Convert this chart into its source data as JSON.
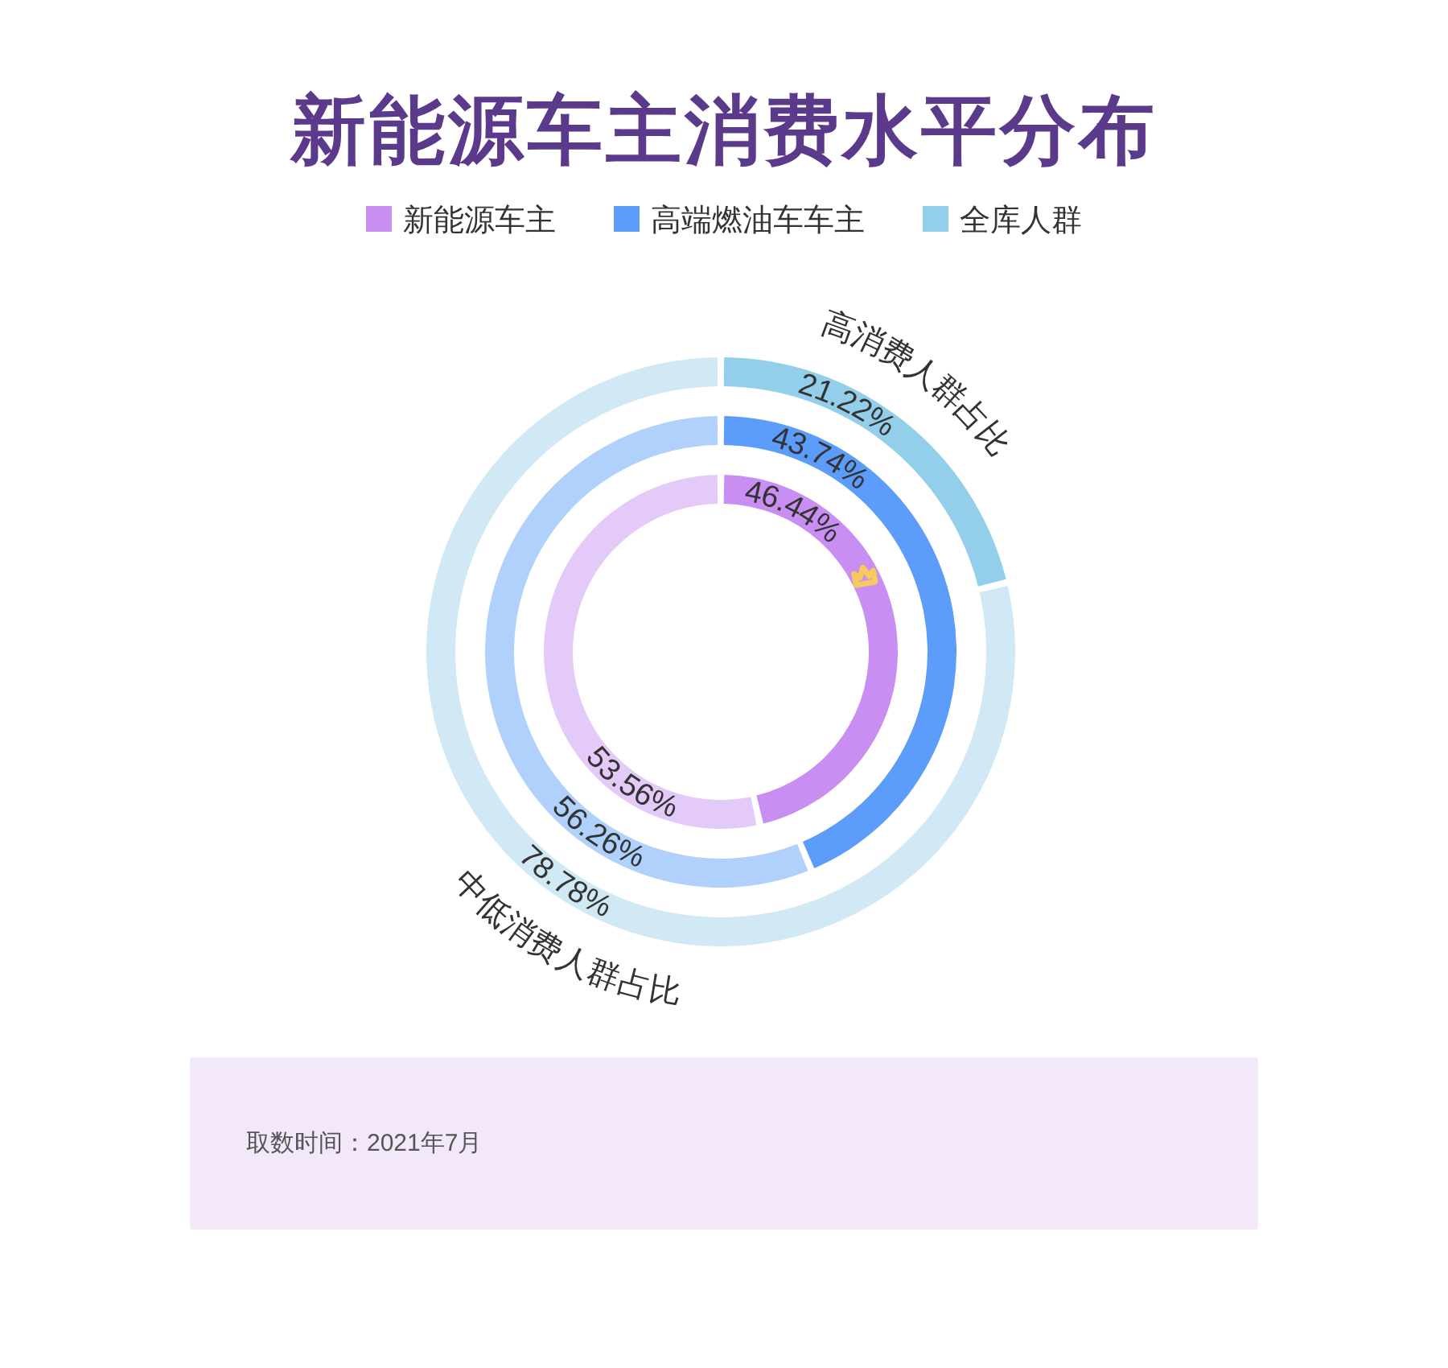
{
  "chart_data": {
    "type": "donut",
    "title": "新能源车主消费水平分布",
    "categories": [
      "高消费人群占比",
      "中低消费人群占比"
    ],
    "series": [
      {
        "name": "全库人群",
        "colors": [
          "#93cfea",
          "#d0e9f4"
        ],
        "values": [
          21.22,
          78.78
        ],
        "value_labels": [
          "21.22%",
          "78.78%"
        ]
      },
      {
        "name": "高端燃油车车主",
        "colors": [
          "#5c9cfb",
          "#afd1fb"
        ],
        "values": [
          43.74,
          56.26
        ],
        "value_labels": [
          "43.74%",
          "56.26%"
        ]
      },
      {
        "name": "新能源车主",
        "colors": [
          "#c98ef2",
          "#e4caf8"
        ],
        "values": [
          46.44,
          53.56
        ],
        "value_labels": [
          "46.44%",
          "53.56%"
        ]
      }
    ],
    "legend": "top",
    "annotations": [
      "取数时间：2021年7月"
    ]
  }
}
